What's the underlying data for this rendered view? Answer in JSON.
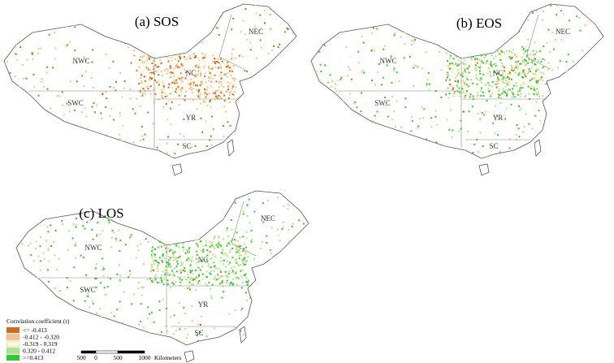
{
  "panels": [
    {
      "title": "(a) SOS",
      "regions": [
        "NWC",
        "NEC",
        "NC",
        "SWC",
        "YR",
        "SC"
      ]
    },
    {
      "title": "(b) EOS",
      "regions": [
        "NWC",
        "NEC",
        "NC",
        "SWC",
        "YR",
        "SC"
      ]
    },
    {
      "title": "(c) LOS",
      "regions": [
        "NWC",
        "NEC",
        "NC",
        "SWC",
        "YR",
        "SC"
      ]
    }
  ],
  "legend": {
    "title": "Correlation coefficient (r)",
    "items": [
      {
        "label": "<= -0.413",
        "color": "#cf6a1f"
      },
      {
        "label": "-0.412 - -0.320",
        "color": "#f3c08e"
      },
      {
        "label": "-0.319 - 0.319",
        "color": "#fff9cf"
      },
      {
        "label": "0.320 - 0.412",
        "color": "#a8e48c"
      },
      {
        "label": ">=0.413",
        "color": "#2fc92f"
      }
    ]
  },
  "scale_bar": {
    "labels": [
      "500",
      "0",
      "500",
      "1000"
    ],
    "unit": "Kilometers"
  }
}
